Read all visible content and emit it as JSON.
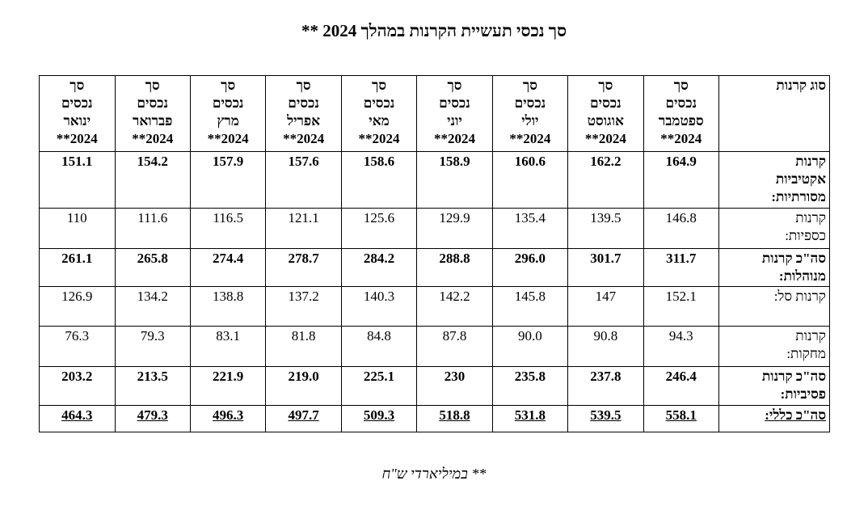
{
  "title": "סך נכסי תעשיית הקרנות במהלך 2024 **",
  "table": {
    "corner": "סוג קרנות",
    "headers": [
      "סך\nנכסים\nספטמבר\n2024**",
      "סך\nנכסים\nאוגוסט\n2024**",
      "סך\nנכסים\nיולי\n2024**",
      "סך\nנכסים\nיוני\n2024**",
      "סך\nנכסים\nמאי\n2024**",
      "סך\nנכסים\nאפריל\n2024**",
      "סך\nנכסים\nמרץ\n2024**",
      "סך\nנכסים\nפברואר\n2024**",
      "סך\nנכסים\nינואר\n2024**"
    ],
    "rows": [
      {
        "label": "קרנות\nאקטיביות\nמסורתיות:",
        "bold": true,
        "underline": false,
        "values": [
          "164.9",
          "162.2",
          "160.6",
          "158.9",
          "158.6",
          "157.6",
          "157.9",
          "154.2",
          "151.1"
        ]
      },
      {
        "label": "קרנות\nכספיות:",
        "bold": false,
        "underline": false,
        "values": [
          "146.8",
          "139.5",
          "135.4",
          "129.9",
          "125.6",
          "121.1",
          "116.5",
          "111.6",
          "110"
        ]
      },
      {
        "label": "סה\"כ קרנות\nמנוהלות:",
        "bold": true,
        "underline": false,
        "values": [
          "311.7",
          "301.7",
          "296.0",
          "288.8",
          "284.2",
          "278.7",
          "274.4",
          "265.8",
          "261.1"
        ]
      },
      {
        "label": "קרנות סל:",
        "bold": false,
        "underline": false,
        "values": [
          "152.1",
          "147",
          "145.8",
          "142.2",
          "140.3",
          "137.2",
          "138.8",
          "134.2",
          "126.9"
        ]
      },
      {
        "label": "קרנות\nמחקות:",
        "bold": false,
        "underline": false,
        "values": [
          "94.3",
          "90.8",
          "90.0",
          "87.8",
          "84.8",
          "81.8",
          "83.1",
          "79.3",
          "76.3"
        ]
      },
      {
        "label": "סה\"כ קרנות\nפסיביות:",
        "bold": true,
        "underline": false,
        "values": [
          "246.4",
          "237.8",
          "235.8",
          "230",
          "225.1",
          "219.0",
          "221.9",
          "213.5",
          "203.2"
        ]
      },
      {
        "label": "סה\"כ כללי:",
        "bold": true,
        "underline": true,
        "values": [
          "558.1",
          "539.5",
          "531.8",
          "518.8",
          "509.3",
          "497.7",
          "496.3",
          "479.3",
          "464.3"
        ]
      }
    ]
  },
  "footnote": "** במיליארדי ש\"ח"
}
